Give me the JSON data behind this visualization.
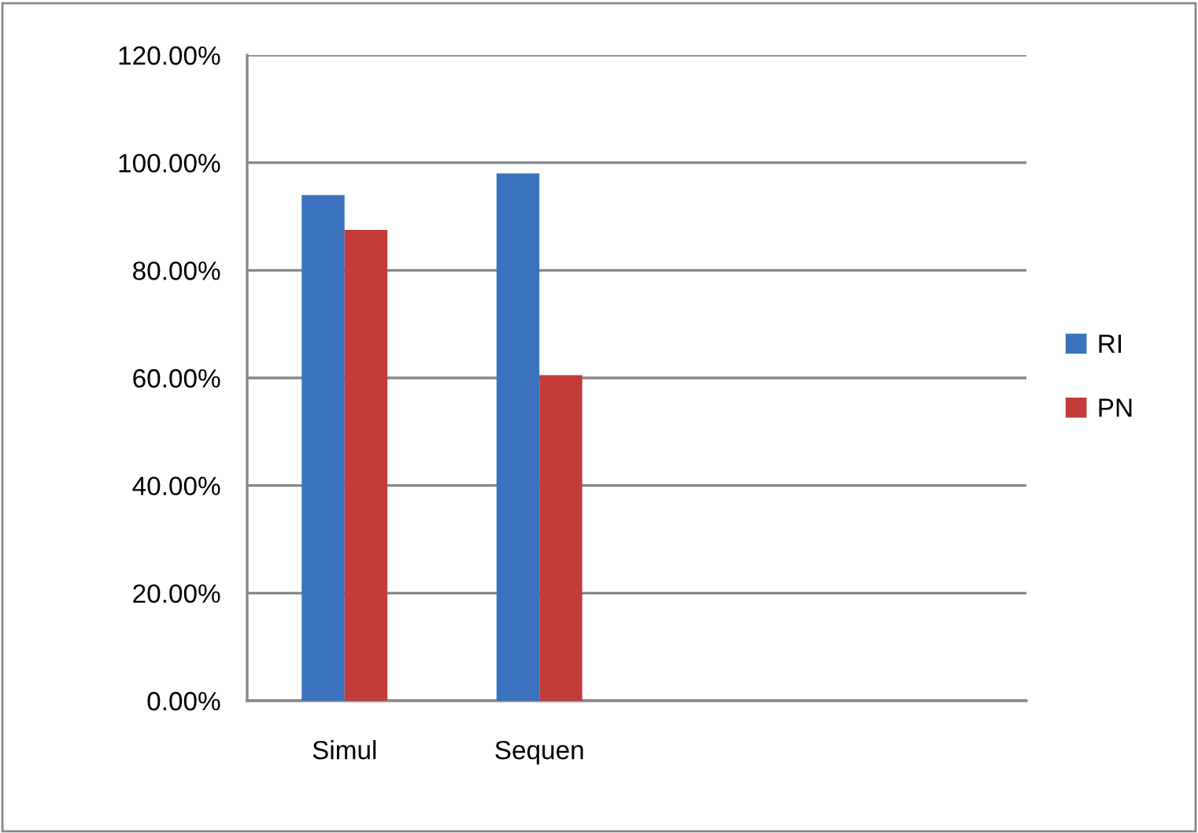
{
  "chart_data": {
    "type": "bar",
    "categories": [
      "Simul",
      "Sequen",
      null,
      null
    ],
    "series": [
      {
        "name": "RI",
        "color": "#3b72c0",
        "values": [
          94,
          98,
          null,
          null
        ]
      },
      {
        "name": "PN",
        "color": "#c43c3a",
        "values": [
          87.5,
          60.5,
          null,
          null
        ]
      }
    ],
    "ylim": [
      0,
      120
    ],
    "yticks": [
      {
        "value": 0,
        "label": "0.00%"
      },
      {
        "value": 20,
        "label": "20.00%"
      },
      {
        "value": 40,
        "label": "40.00%"
      },
      {
        "value": 60,
        "label": "60.00%"
      },
      {
        "value": 80,
        "label": "80.00%"
      },
      {
        "value": 100,
        "label": "100.00%"
      },
      {
        "value": 120,
        "label": "120.00%"
      }
    ],
    "grid": "y",
    "legend": "right"
  }
}
